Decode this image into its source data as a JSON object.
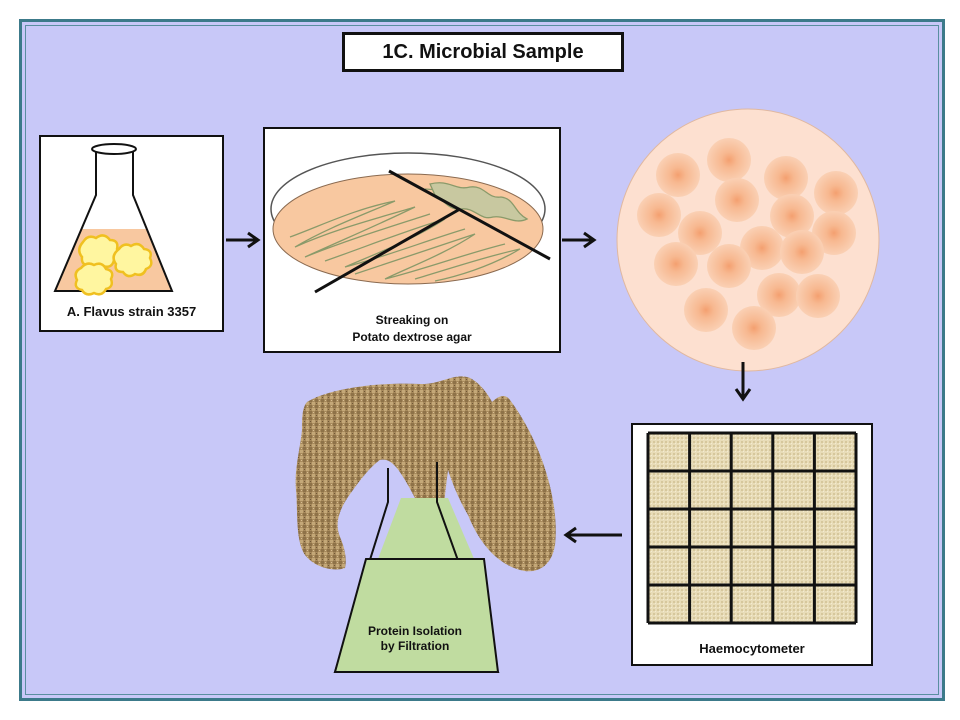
{
  "title": "1C. Microbial Sample",
  "steps": {
    "culture_label": "A. Flavus strain 3357",
    "streaking_label_line1": "Streaking on",
    "streaking_label_line2": "Potato dextrose agar",
    "haemocytometer_label": "Haemocytometer",
    "filtration_label_line1": "Protein Isolation",
    "filtration_label_line2": "by Filtration"
  },
  "colors": {
    "background": "#c8c8f8",
    "frame_border": "#3c7a8a",
    "agar": "#f8c8a0",
    "colony": "#f0a878",
    "filtrate": "#c0dca0",
    "filter_cloth": "#a88a5c",
    "grid_cell": "#e8dcb8"
  },
  "haemocytometer_grid": {
    "rows": 5,
    "columns": 5
  }
}
